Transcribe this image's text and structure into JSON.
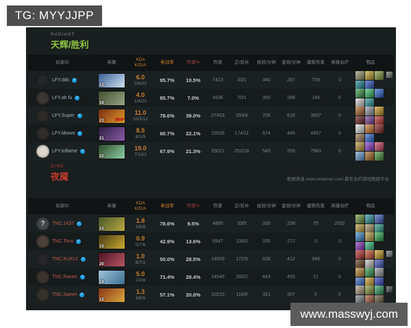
{
  "tg_badge": "TG: MYYJJPP",
  "watermark": "www.masswyj.com",
  "source_note": "数据来自 www.dotamax.com 最专业的游戏数据平台",
  "colors": {
    "radiant_accent": "#8dc63f",
    "dire_accent": "#c0392b",
    "kda_orange": "#c87d2e",
    "damage_red": "#9e4040",
    "verified_blue": "#1e9de0"
  },
  "columns": [
    {
      "key": "player",
      "label": "玩家ID"
    },
    {
      "key": "hero",
      "label": "英雄"
    },
    {
      "key": "kda",
      "label": "KDA",
      "label2": "K/D/A",
      "color": "#c87d2e"
    },
    {
      "key": "part",
      "label": "参战率",
      "color": "#c87d2e"
    },
    {
      "key": "dmgpct",
      "label": "伤害%",
      "color": "#9e4040"
    },
    {
      "key": "dmg",
      "label": "伤害"
    },
    {
      "key": "cs",
      "label": "正/反补"
    },
    {
      "key": "xpm",
      "label": "经验/分钟"
    },
    {
      "key": "gpm",
      "label": "金钱/分钟"
    },
    {
      "key": "bld",
      "label": "建筑伤害"
    },
    {
      "key": "heal",
      "label": "英雄治疗"
    },
    {
      "key": "items",
      "label": "物品"
    }
  ],
  "radiant": {
    "faction_label": "RADIANT",
    "team_title": "天辉/胜利",
    "players": [
      {
        "name": "LFY.ddc",
        "verified": true,
        "avatar": {
          "bg": "#23262a",
          "q": false
        },
        "hero": {
          "level": "15",
          "mvp": false,
          "c1": "#3a5f95",
          "c2": "#cfe0f0"
        },
        "kda": "6.0",
        "kda_detail": "2/4/22",
        "part": "85.7%",
        "dmgpct": "10.5%",
        "dmg": "7413",
        "cs": "33/1",
        "xpm": "340",
        "gpm": "287",
        "bld": "759",
        "heal": "0",
        "items": {
          "colors": [
            "#9a9a72",
            "#c8a828",
            "#86a038",
            "#1a8a9a",
            "#2a52c8"
          ],
          "extra": "#84847a"
        }
      },
      {
        "name": "LFY.ah fu",
        "verified": true,
        "avatar": {
          "bg": "#3c3733",
          "q": false
        },
        "hero": {
          "level": "16",
          "mvp": false,
          "c1": "#41502e",
          "c2": "#97a584"
        },
        "kda": "4.0",
        "kda_detail": "1/6/23",
        "part": "85.7%",
        "dmgpct": "7.0%",
        "dmg": "4936",
        "cs": "70/1",
        "xpm": "350",
        "gpm": "288",
        "bld": "146",
        "heal": "0",
        "items": {
          "colors": [
            "#3a9a4a",
            "#38c06a",
            "#2a6ad8",
            "#d8d8d8",
            "#2a9a9a"
          ],
          "extra": null
        }
      },
      {
        "name": "LFY.Super",
        "verified": true,
        "avatar": {
          "bg": "#2c2a26",
          "q": false
        },
        "hero": {
          "level": "23",
          "mvp": true,
          "c1": "#7a2c12",
          "c2": "#e09a2c"
        },
        "kda": "11.0",
        "kda_detail": "10/2/12",
        "part": "78.6%",
        "dmgpct": "39.0%",
        "dmg": "27453",
        "cs": "293/4",
        "xpm": "708",
        "gpm": "616",
        "bld": "3607",
        "heal": "0",
        "items": {
          "colors": [
            "#b06a2a",
            "#9aa0a8",
            "#d0a020",
            "#6a1a1a",
            "#7a3a9a",
            "#c03030"
          ],
          "extra": null
        }
      },
      {
        "name": "LFY.Monet",
        "verified": true,
        "avatar": {
          "bg": "#2f2c2a",
          "q": false
        },
        "hero": {
          "level": "21",
          "mvp": false,
          "c1": "#2c1f3e",
          "c2": "#8a5aaa"
        },
        "kda": "8.5",
        "kda_detail": "8/2/9",
        "part": "60.7%",
        "dmgpct": "22.1%",
        "dmg": "15535",
        "cs": "174/11",
        "xpm": "574",
        "gpm": "486",
        "bld": "4457",
        "heal": "0",
        "items": {
          "colors": [
            "#e8e8e8",
            "#d07a2a",
            "#8a2020",
            "#9a7a4a",
            "#2a6ad8"
          ],
          "extra": null
        }
      },
      {
        "name": "LFY.Inflame",
        "verified": true,
        "avatar": {
          "bg": "#ddd6cc",
          "q": false
        },
        "hero": {
          "level": "20",
          "mvp": false,
          "c1": "#2e4a28",
          "c2": "#8fd0a8"
        },
        "kda": "19.0",
        "kda_detail": "7/1/12",
        "part": "67.9%",
        "dmgpct": "21.3%",
        "dmg": "15021",
        "cs": "252/16",
        "xpm": "545",
        "gpm": "555",
        "bld": "7983",
        "heal": "0",
        "items": {
          "colors": [
            "#c09a3a",
            "#8a3ad0",
            "#d04060",
            "#6aa0d8",
            "#b06a20",
            "#4a9a3a"
          ],
          "extra": null
        }
      }
    ]
  },
  "dire": {
    "faction_label": "DIRE",
    "team_title": "夜魇",
    "players": [
      {
        "name": "TNC.1437",
        "verified": true,
        "avatar": {
          "bg": "#42474b",
          "q": true
        },
        "hero": {
          "level": "15",
          "mvp": false,
          "c1": "#4a5a28",
          "c2": "#b8a844"
        },
        "kda": "1.8",
        "kda_detail": "3/6/8",
        "part": "78.6%",
        "dmgpct": "9.5%",
        "dmg": "4885",
        "cs": "33/5",
        "xpm": "335",
        "gpm": "238",
        "bld": "75",
        "heal": "2932",
        "items": {
          "colors": [
            "#6a9a3a",
            "#2a9aa0",
            "#3a5ac0",
            "#c0a040",
            "#b09a6a",
            "#2aa08a"
          ],
          "extra": null
        }
      },
      {
        "name": "TNC.Tims",
        "verified": true,
        "avatar": {
          "bg": "#4a4139",
          "q": false
        },
        "hero": {
          "level": "15",
          "mvp": false,
          "c1": "#443a14",
          "c2": "#c8aa30"
        },
        "kda": "0.9",
        "kda_detail": "0/7/6",
        "part": "42.9%",
        "dmgpct": "13.6%",
        "dmg": "6947",
        "cs": "108/0",
        "xpm": "335",
        "gpm": "272",
        "bld": "0",
        "heal": "0",
        "items": {
          "colors": [
            "#3a8ad0",
            "#c0a040",
            "#30b050",
            "#8a30c0",
            "#30c080"
          ],
          "extra": null
        }
      },
      {
        "name": "TNC.KUKU!",
        "verified": true,
        "avatar": {
          "bg": "#27262a",
          "q": false
        },
        "hero": {
          "level": "20",
          "mvp": false,
          "c1": "#4a1424",
          "c2": "#b85464"
        },
        "kda": "1.0",
        "kda_detail": "6/7/1",
        "part": "50.0%",
        "dmgpct": "28.5%",
        "dmg": "14609",
        "cs": "172/9",
        "xpm": "538",
        "gpm": "412",
        "bld": "946",
        "heal": "0",
        "items": {
          "colors": [
            "#c03030",
            "#d05030",
            "#d0a020",
            "#6a3a1a",
            "#c8c8c8",
            "#3a50c0"
          ],
          "extra": "#8a8f92"
        }
      },
      {
        "name": "TNC.Raven",
        "verified": true,
        "avatar": {
          "bg": "#3b332c",
          "q": false
        },
        "hero": {
          "level": "18",
          "mvp": false,
          "c1": "#9ec4d8",
          "c2": "#3e6f92"
        },
        "kda": "5.0",
        "kda_detail": "2/2/8",
        "part": "71.4%",
        "dmgpct": "28.4%",
        "dmg": "14545",
        "cs": "269/2",
        "xpm": "443",
        "gpm": "455",
        "bld": "21",
        "heal": "0",
        "items": {
          "colors": [
            "#c08a30",
            "#30a050",
            "#9aa0a0",
            "#3a6ad0",
            "#d0a030",
            "#2a40c8"
          ],
          "extra": null
        }
      },
      {
        "name": "TNC.SamH",
        "verified": true,
        "avatar": {
          "bg": "#36302a",
          "q": false
        },
        "hero": {
          "level": "15",
          "mvp": false,
          "c1": "#8a3418",
          "c2": "#d8a83c"
        },
        "kda": "1.3",
        "kda_detail": "3/6/5",
        "part": "57.1%",
        "dmgpct": "20.0%",
        "dmg": "10215",
        "cs": "118/8",
        "xpm": "321",
        "gpm": "307",
        "bld": "0",
        "heal": "0",
        "items": {
          "colors": [
            "#b0a080",
            "#8a9a3a",
            "#30a060",
            "#82888a",
            "#b05a3a",
            "#6a5a3a"
          ],
          "extra": "#55595b"
        }
      }
    ]
  }
}
